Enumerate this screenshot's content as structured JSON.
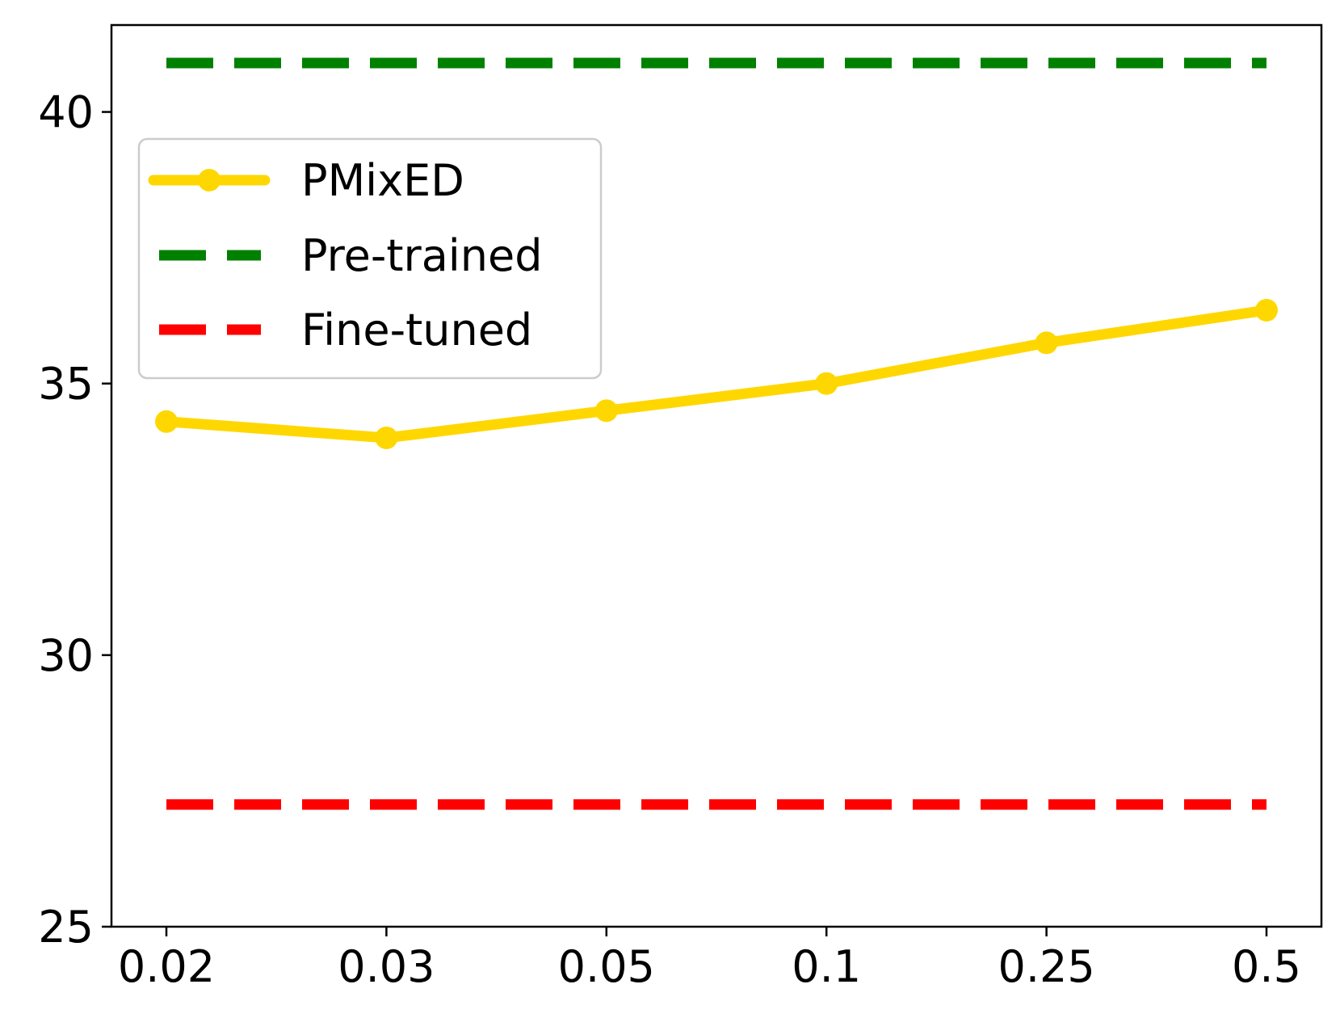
{
  "chart_data": {
    "type": "line",
    "title": "",
    "xlabel": "",
    "ylabel": "",
    "categories": [
      "0.02",
      "0.03",
      "0.05",
      "0.1",
      "0.25",
      "0.5"
    ],
    "ylim": [
      25,
      41.6
    ],
    "yticks": [
      "25",
      "30",
      "35",
      "40"
    ],
    "grid": false,
    "legend_position": "upper-left",
    "series": [
      {
        "name": "PMixED",
        "style": "solid",
        "marker": "circle",
        "color": "#FFD700",
        "values": [
          34.3,
          34.0,
          34.5,
          35.0,
          35.75,
          36.35
        ]
      },
      {
        "name": "Pre-trained",
        "style": "dashed",
        "color": "#008000",
        "values": [
          40.9,
          40.9,
          40.9,
          40.9,
          40.9,
          40.9
        ]
      },
      {
        "name": "Fine-tuned",
        "style": "dashed",
        "color": "#FF0000",
        "values": [
          27.25,
          27.25,
          27.25,
          27.25,
          27.25,
          27.25
        ]
      }
    ]
  }
}
